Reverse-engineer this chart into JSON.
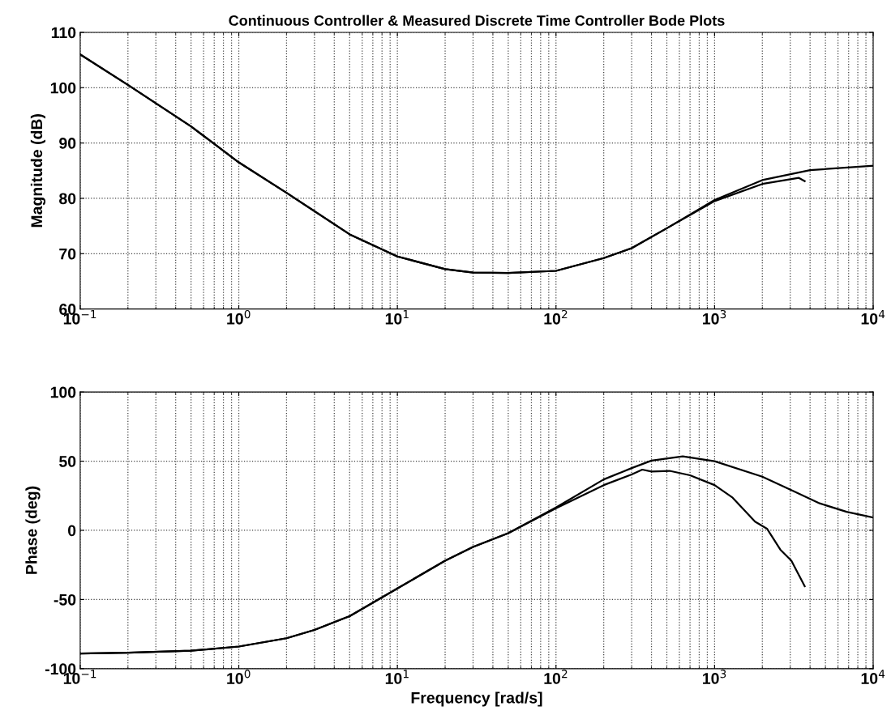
{
  "chart_data": [
    {
      "type": "line",
      "title": "Continuous Controller & Measured Discrete Time Controller Bode Plots",
      "ylabel": "Magnitude (dB)",
      "log": "x",
      "grid": true,
      "xlim": [
        0.1,
        10000
      ],
      "xticks": [
        {
          "value": 0.1,
          "label": "10$^{−1}$"
        },
        {
          "value": 1,
          "label": "10$^{0}$"
        },
        {
          "value": 10,
          "label": "10$^{1}$"
        },
        {
          "value": 100,
          "label": "10$^{2}$"
        },
        {
          "value": 1000,
          "label": "10$^{3}$"
        },
        {
          "value": 10000,
          "label": "10$^{4}$"
        }
      ],
      "ylim": [
        60,
        110
      ],
      "yticks": [
        60,
        70,
        80,
        90,
        100,
        110
      ],
      "series": [
        {
          "color": "#000000",
          "x": [
            0.1,
            0.2,
            0.5,
            1,
            2,
            5,
            10,
            20,
            30,
            50,
            100,
            200,
            300,
            500,
            1000,
            2000,
            4000,
            10000
          ],
          "values": [
            106,
            100.5,
            93,
            86.5,
            81,
            73.5,
            69.5,
            67.2,
            66.6,
            66.5,
            66.9,
            69.2,
            71,
            74.6,
            79.7,
            83.3,
            85.1,
            85.9
          ]
        },
        {
          "color": "#000000",
          "x": [
            0.1,
            0.2,
            0.5,
            1,
            2,
            5,
            10,
            20,
            30,
            50,
            100,
            200,
            300,
            500,
            1000,
            2000,
            3400,
            3700
          ],
          "values": [
            106,
            100.5,
            93,
            86.5,
            81,
            73.5,
            69.5,
            67.2,
            66.6,
            66.5,
            66.9,
            69.2,
            71,
            74.6,
            79.5,
            82.6,
            83.7,
            83.1
          ]
        }
      ]
    },
    {
      "type": "line",
      "xlabel": "Frequency [rad/s]",
      "ylabel": "Phase (deg)",
      "log": "x",
      "grid": true,
      "xlim": [
        0.1,
        10000
      ],
      "xticks": [
        {
          "value": 0.1,
          "label": "10$^{−1}$"
        },
        {
          "value": 1,
          "label": "10$^{0}$"
        },
        {
          "value": 10,
          "label": "10$^{1}$"
        },
        {
          "value": 100,
          "label": "10$^{2}$"
        },
        {
          "value": 1000,
          "label": "10$^{3}$"
        },
        {
          "value": 10000,
          "label": "10$^{4}$"
        }
      ],
      "ylim": [
        -100,
        100
      ],
      "yticks": [
        -100,
        -50,
        0,
        50,
        100
      ],
      "series": [
        {
          "color": "#000000",
          "x": [
            0.1,
            0.2,
            0.5,
            1,
            2,
            3,
            5,
            10,
            20,
            30,
            50,
            100,
            200,
            300,
            400,
            630,
            1000,
            2000,
            3100,
            4600,
            6800,
            10000
          ],
          "values": [
            -89,
            -88.5,
            -87,
            -84,
            -78,
            -72,
            -62,
            -42,
            -22,
            -12,
            -2,
            16.5,
            36.8,
            45,
            50.4,
            53.5,
            50,
            38.8,
            28.7,
            19.5,
            13.4,
            9.3
          ]
        },
        {
          "color": "#000000",
          "x": [
            0.1,
            0.2,
            0.5,
            1,
            2,
            3,
            5,
            10,
            20,
            30,
            50,
            100,
            200,
            300,
            350,
            400,
            520,
            700,
            1000,
            1300,
            1800,
            2140,
            2600,
            3050,
            3700
          ],
          "values": [
            -89,
            -88.5,
            -87,
            -84,
            -78,
            -72,
            -62,
            -42,
            -22,
            -12,
            -2,
            16,
            32.7,
            40.4,
            43.9,
            42.5,
            43,
            39.8,
            32.7,
            23.6,
            6.3,
            1.2,
            -14,
            -22,
            -40.4
          ]
        }
      ]
    }
  ]
}
